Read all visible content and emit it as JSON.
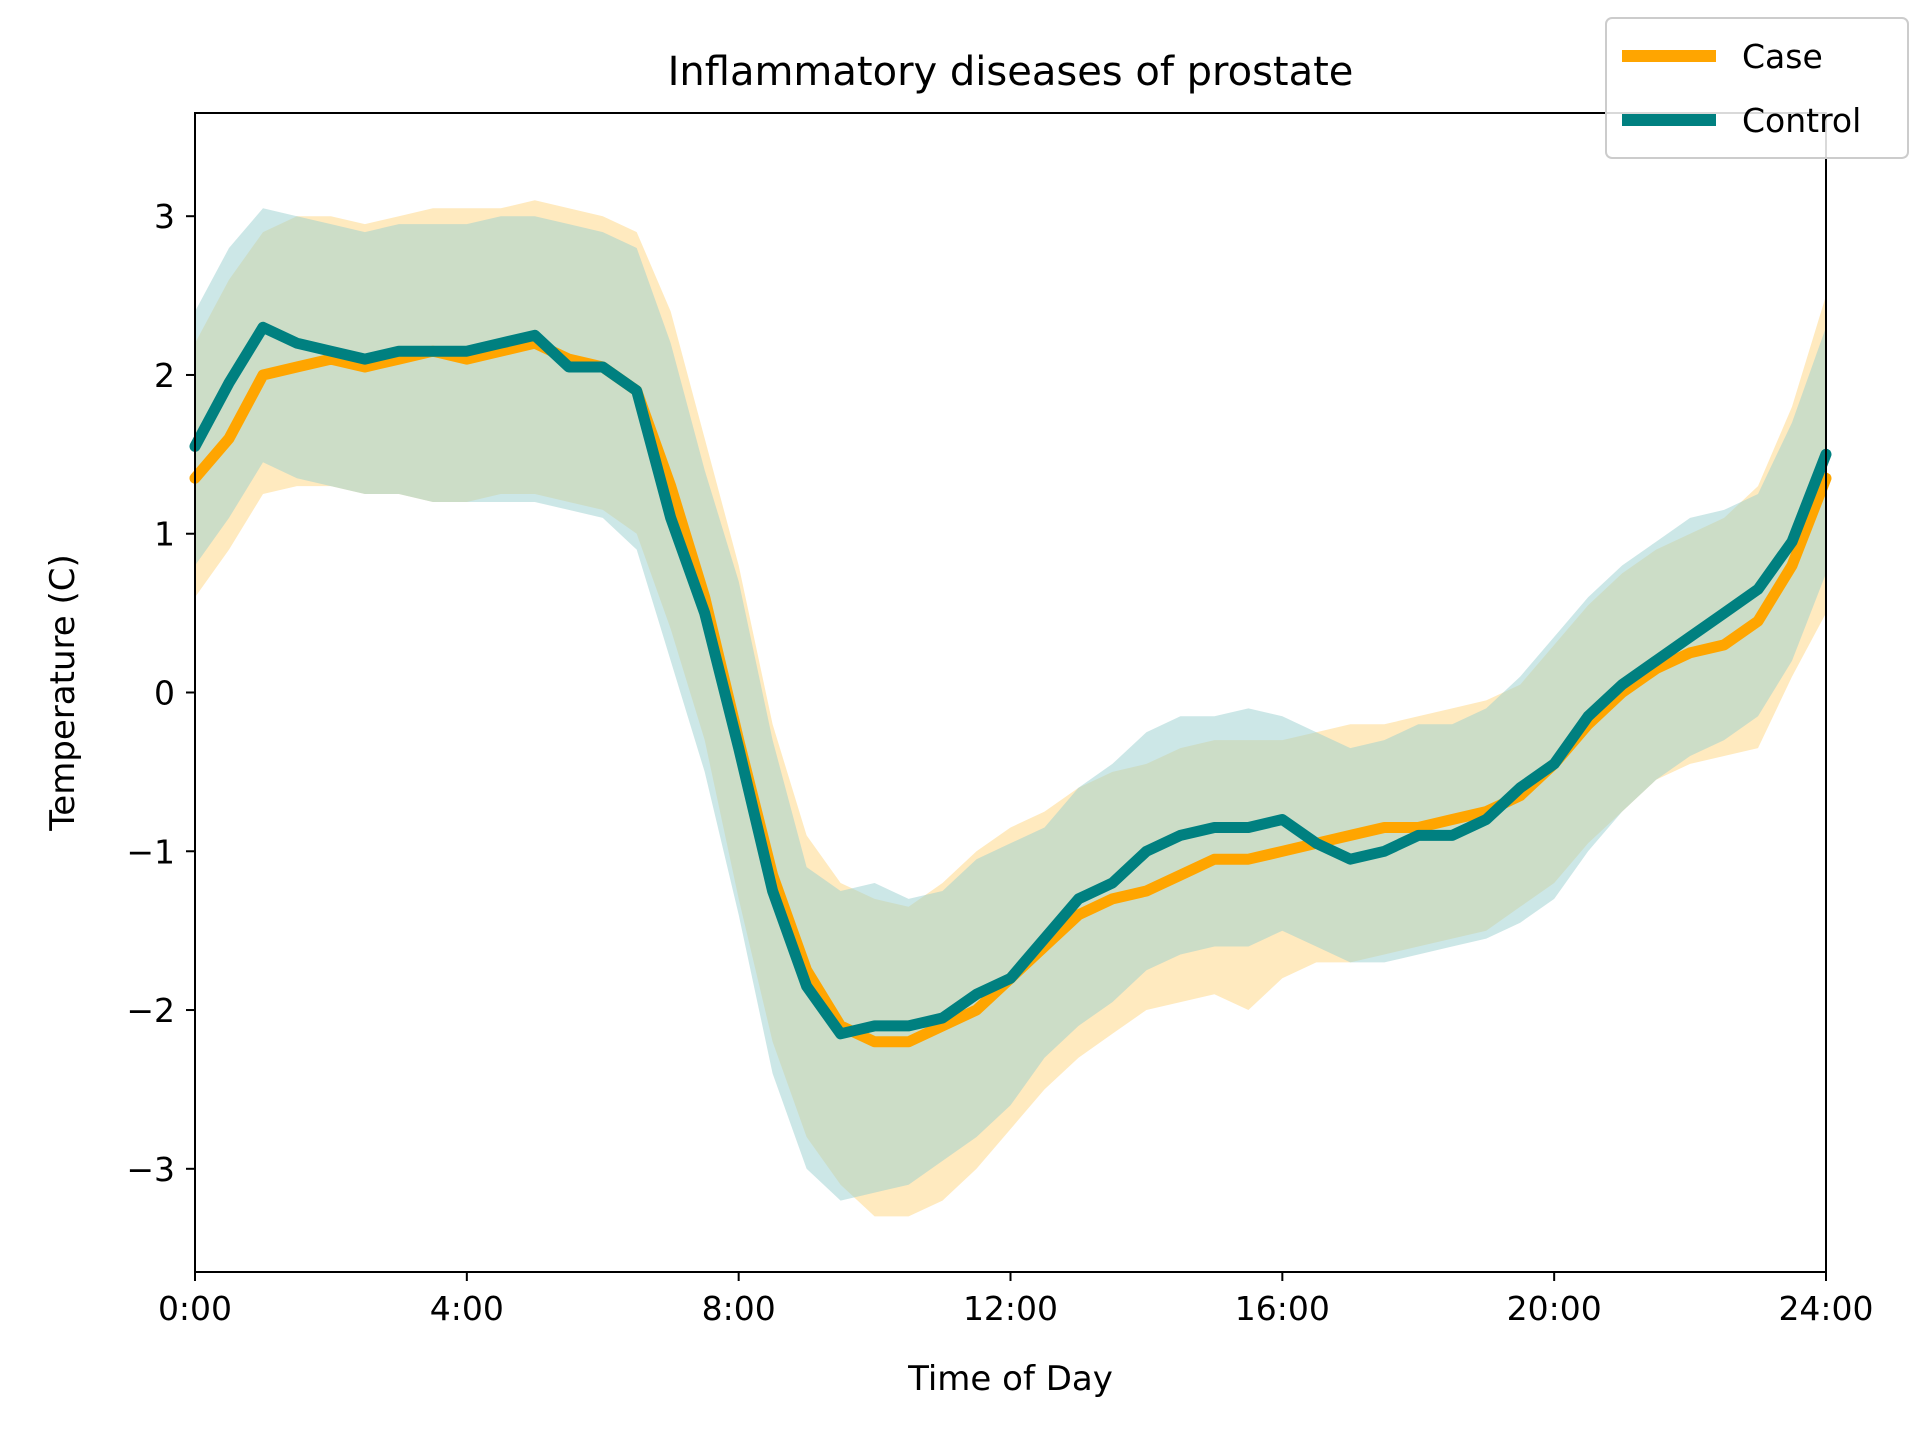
{
  "chart_data": {
    "type": "line",
    "title": "Inflammatory diseases of prostate",
    "xlabel": "Time of Day",
    "ylabel": "Temperature (C)",
    "xlim": [
      0,
      24
    ],
    "ylim": [
      -3.65,
      3.65
    ],
    "x_ticks": [
      {
        "value": 0,
        "label": "0:00"
      },
      {
        "value": 4,
        "label": "4:00"
      },
      {
        "value": 8,
        "label": "8:00"
      },
      {
        "value": 12,
        "label": "12:00"
      },
      {
        "value": 16,
        "label": "16:00"
      },
      {
        "value": 20,
        "label": "20:00"
      },
      {
        "value": 24,
        "label": "24:00"
      }
    ],
    "y_ticks": [
      {
        "value": 3,
        "label": "3"
      },
      {
        "value": 2,
        "label": "2"
      },
      {
        "value": 1,
        "label": "1"
      },
      {
        "value": 0,
        "label": "0"
      },
      {
        "value": -1,
        "label": "−1"
      },
      {
        "value": -2,
        "label": "−2"
      },
      {
        "value": -3,
        "label": "−3"
      }
    ],
    "grid": false,
    "legend_position": "top-right",
    "series": [
      {
        "name": "Case",
        "color": "#FFA500",
        "band_color": "#FFD98A",
        "x": [
          0,
          0.5,
          1,
          1.5,
          2,
          2.5,
          3,
          3.5,
          4,
          4.5,
          5,
          5.5,
          6,
          6.5,
          7,
          7.5,
          8,
          8.5,
          9,
          9.5,
          10,
          10.5,
          11,
          11.5,
          12,
          12.5,
          13,
          13.5,
          14,
          14.5,
          15,
          15.5,
          16,
          16.5,
          17,
          17.5,
          18,
          18.5,
          19,
          19.5,
          20,
          20.5,
          21,
          21.5,
          22,
          22.5,
          23,
          23.5,
          24
        ],
        "y": [
          1.35,
          1.6,
          2.0,
          2.05,
          2.1,
          2.05,
          2.1,
          2.15,
          2.1,
          2.15,
          2.2,
          2.1,
          2.05,
          1.9,
          1.3,
          0.6,
          -0.3,
          -1.15,
          -1.75,
          -2.1,
          -2.2,
          -2.2,
          -2.1,
          -2.0,
          -1.8,
          -1.6,
          -1.4,
          -1.3,
          -1.25,
          -1.15,
          -1.05,
          -1.05,
          -1.0,
          -0.95,
          -0.9,
          -0.85,
          -0.85,
          -0.8,
          -0.75,
          -0.65,
          -0.45,
          -0.2,
          0.0,
          0.15,
          0.25,
          0.3,
          0.45,
          0.8,
          1.35
        ],
        "lower": [
          0.6,
          0.9,
          1.25,
          1.3,
          1.3,
          1.25,
          1.25,
          1.2,
          1.2,
          1.25,
          1.25,
          1.2,
          1.15,
          1.0,
          0.4,
          -0.3,
          -1.3,
          -2.2,
          -2.8,
          -3.1,
          -3.3,
          -3.3,
          -3.2,
          -3.0,
          -2.75,
          -2.5,
          -2.3,
          -2.15,
          -2.0,
          -1.95,
          -1.9,
          -2.0,
          -1.8,
          -1.7,
          -1.7,
          -1.65,
          -1.6,
          -1.55,
          -1.5,
          -1.35,
          -1.2,
          -0.95,
          -0.75,
          -0.55,
          -0.45,
          -0.4,
          -0.35,
          0.1,
          0.5
        ],
        "upper": [
          2.2,
          2.6,
          2.9,
          3.0,
          3.0,
          2.95,
          3.0,
          3.05,
          3.05,
          3.05,
          3.1,
          3.05,
          3.0,
          2.9,
          2.4,
          1.6,
          0.8,
          -0.2,
          -0.9,
          -1.2,
          -1.3,
          -1.35,
          -1.2,
          -1.0,
          -0.85,
          -0.75,
          -0.6,
          -0.5,
          -0.45,
          -0.35,
          -0.3,
          -0.3,
          -0.3,
          -0.25,
          -0.2,
          -0.2,
          -0.15,
          -0.1,
          -0.05,
          0.05,
          0.3,
          0.55,
          0.75,
          0.9,
          1.0,
          1.1,
          1.3,
          1.8,
          2.5
        ]
      },
      {
        "name": "Control",
        "color": "#008080",
        "band_color": "#9ACFD0",
        "x": [
          0,
          0.5,
          1,
          1.5,
          2,
          2.5,
          3,
          3.5,
          4,
          4.5,
          5,
          5.5,
          6,
          6.5,
          7,
          7.5,
          8,
          8.5,
          9,
          9.5,
          10,
          10.5,
          11,
          11.5,
          12,
          12.5,
          13,
          13.5,
          14,
          14.5,
          15,
          15.5,
          16,
          16.5,
          17,
          17.5,
          18,
          18.5,
          19,
          19.5,
          20,
          20.5,
          21,
          21.5,
          22,
          22.5,
          23,
          23.5,
          24
        ],
        "y": [
          1.55,
          1.95,
          2.3,
          2.2,
          2.15,
          2.1,
          2.15,
          2.15,
          2.15,
          2.2,
          2.25,
          2.05,
          2.05,
          1.9,
          1.1,
          0.5,
          -0.35,
          -1.25,
          -1.85,
          -2.15,
          -2.1,
          -2.1,
          -2.05,
          -1.9,
          -1.8,
          -1.55,
          -1.3,
          -1.2,
          -1.0,
          -0.9,
          -0.85,
          -0.85,
          -0.8,
          -0.95,
          -1.05,
          -1.0,
          -0.9,
          -0.9,
          -0.8,
          -0.6,
          -0.45,
          -0.15,
          0.05,
          0.2,
          0.35,
          0.5,
          0.65,
          0.95,
          1.5
        ],
        "lower": [
          0.8,
          1.1,
          1.45,
          1.35,
          1.3,
          1.25,
          1.25,
          1.2,
          1.2,
          1.2,
          1.2,
          1.15,
          1.1,
          0.9,
          0.2,
          -0.5,
          -1.4,
          -2.4,
          -3.0,
          -3.2,
          -3.15,
          -3.1,
          -2.95,
          -2.8,
          -2.6,
          -2.3,
          -2.1,
          -1.95,
          -1.75,
          -1.65,
          -1.6,
          -1.6,
          -1.5,
          -1.6,
          -1.7,
          -1.7,
          -1.65,
          -1.6,
          -1.55,
          -1.45,
          -1.3,
          -1.0,
          -0.75,
          -0.55,
          -0.4,
          -0.3,
          -0.15,
          0.2,
          0.75
        ],
        "upper": [
          2.4,
          2.8,
          3.05,
          3.0,
          2.95,
          2.9,
          2.95,
          2.95,
          2.95,
          3.0,
          3.0,
          2.95,
          2.9,
          2.8,
          2.2,
          1.4,
          0.7,
          -0.3,
          -1.1,
          -1.25,
          -1.2,
          -1.3,
          -1.25,
          -1.05,
          -0.95,
          -0.85,
          -0.6,
          -0.45,
          -0.25,
          -0.15,
          -0.15,
          -0.1,
          -0.15,
          -0.25,
          -0.35,
          -0.3,
          -0.2,
          -0.2,
          -0.1,
          0.1,
          0.35,
          0.6,
          0.8,
          0.95,
          1.1,
          1.15,
          1.25,
          1.7,
          2.3
        ]
      }
    ]
  }
}
